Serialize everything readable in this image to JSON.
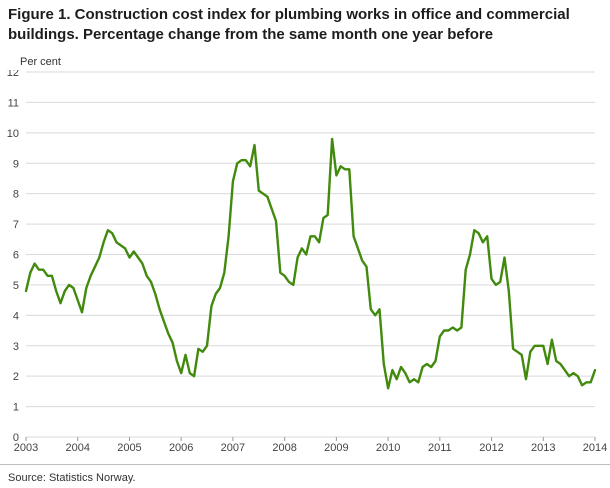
{
  "title": "Figure 1. Construction cost index for plumbing works in office and commercial buildings. Percentage change from the same month one year before",
  "source": "Source: Statistics Norway.",
  "chart_data": {
    "type": "line",
    "title": "Figure 1. Construction cost index for plumbing works in office and commercial buildings. Percentage change from the same month one year before",
    "xlabel": "",
    "ylabel": "Per cent",
    "ylim": [
      0,
      12
    ],
    "y_ticks": [
      0,
      1,
      2,
      3,
      4,
      5,
      6,
      7,
      8,
      9,
      10,
      11,
      12
    ],
    "x_ticks": [
      2003,
      2004,
      2005,
      2006,
      2007,
      2008,
      2009,
      2010,
      2011,
      2012,
      2013,
      2014
    ],
    "x_frequency": "monthly",
    "grid": true,
    "grid_color": "#d9d9d9",
    "axis_tick_color": "#999999",
    "legend_position": "none",
    "series": [
      {
        "name": "Percentage change from the same month one year before",
        "color": "#418a0e",
        "values": [
          4.8,
          5.4,
          5.7,
          5.5,
          5.5,
          5.3,
          5.3,
          4.8,
          4.4,
          4.8,
          5.0,
          4.9,
          4.5,
          4.1,
          4.9,
          5.3,
          5.6,
          5.9,
          6.4,
          6.8,
          6.7,
          6.4,
          6.3,
          6.2,
          5.9,
          6.1,
          5.9,
          5.7,
          5.3,
          5.1,
          4.7,
          4.2,
          3.8,
          3.4,
          3.1,
          2.5,
          2.1,
          2.7,
          2.1,
          2.0,
          2.9,
          2.8,
          3.0,
          4.3,
          4.7,
          4.9,
          5.4,
          6.6,
          8.4,
          9.0,
          9.1,
          9.1,
          8.9,
          9.6,
          8.1,
          8.0,
          7.9,
          7.5,
          7.1,
          5.4,
          5.3,
          5.1,
          5.0,
          5.9,
          6.2,
          6.0,
          6.6,
          6.6,
          6.4,
          7.2,
          7.3,
          9.8,
          8.6,
          8.9,
          8.8,
          8.8,
          6.6,
          6.2,
          5.8,
          5.6,
          4.2,
          4.0,
          4.2,
          2.4,
          1.6,
          2.2,
          1.9,
          2.3,
          2.1,
          1.8,
          1.9,
          1.8,
          2.3,
          2.4,
          2.3,
          2.5,
          3.3,
          3.5,
          3.5,
          3.6,
          3.5,
          3.6,
          5.5,
          6.0,
          6.8,
          6.7,
          6.4,
          6.6,
          5.2,
          5.0,
          5.1,
          5.9,
          4.8,
          2.9,
          2.8,
          2.7,
          1.9,
          2.8,
          3.0,
          3.0,
          3.0,
          2.4,
          3.2,
          2.5,
          2.4,
          2.2,
          2.0,
          2.1,
          2.0,
          1.7,
          1.8,
          1.8,
          2.2
        ]
      }
    ]
  }
}
